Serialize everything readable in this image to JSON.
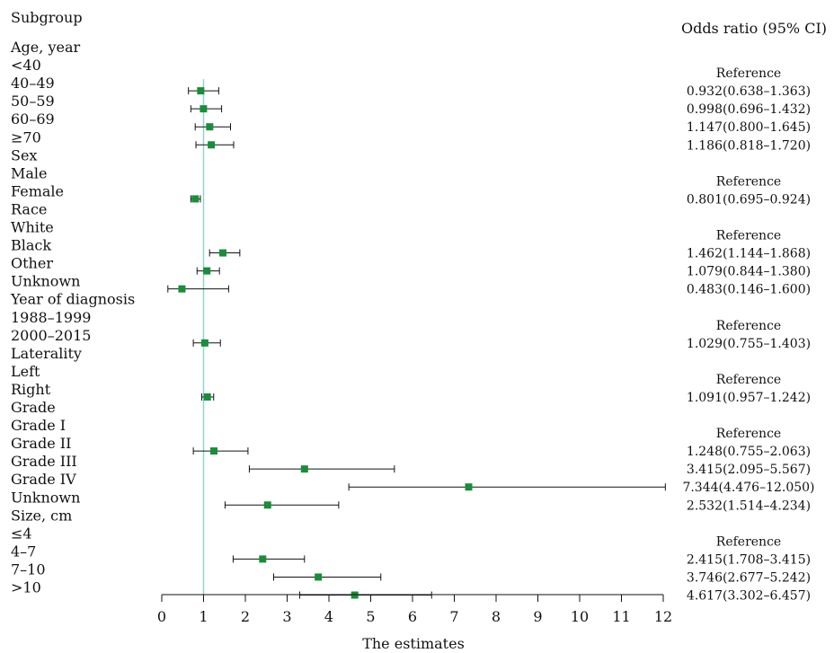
{
  "header": {
    "left": "Subgroup",
    "right": "Odds ratio (95% CI)"
  },
  "chart_data": {
    "type": "forest",
    "xlabel": "The estimates",
    "xlim": [
      0,
      12
    ],
    "xticks": [
      0,
      1,
      2,
      3,
      4,
      5,
      6,
      7,
      8,
      9,
      10,
      11,
      12
    ],
    "reference_line": 1,
    "rows": [
      {
        "label": "Age, year",
        "kind": "group"
      },
      {
        "label": "<40",
        "or_text": "Reference"
      },
      {
        "label": "40–49",
        "or": 0.932,
        "lo": 0.638,
        "hi": 1.363,
        "or_text": "0.932(0.638–1.363)"
      },
      {
        "label": "50–59",
        "or": 0.998,
        "lo": 0.696,
        "hi": 1.432,
        "or_text": "0.998(0.696–1.432)"
      },
      {
        "label": "60–69",
        "or": 1.147,
        "lo": 0.8,
        "hi": 1.645,
        "or_text": "1.147(0.800–1.645)"
      },
      {
        "label": "≥70",
        "or": 1.186,
        "lo": 0.818,
        "hi": 1.72,
        "or_text": "1.186(0.818–1.720)"
      },
      {
        "label": "Sex",
        "kind": "group"
      },
      {
        "label": "Male",
        "or_text": "Reference"
      },
      {
        "label": "Female",
        "or": 0.801,
        "lo": 0.695,
        "hi": 0.924,
        "or_text": "0.801(0.695–0.924)"
      },
      {
        "label": "Race",
        "kind": "group"
      },
      {
        "label": "White",
        "or_text": "Reference"
      },
      {
        "label": "Black",
        "or": 1.462,
        "lo": 1.144,
        "hi": 1.868,
        "or_text": "1.462(1.144–1.868)"
      },
      {
        "label": "Other",
        "or": 1.079,
        "lo": 0.844,
        "hi": 1.38,
        "or_text": "1.079(0.844–1.380)"
      },
      {
        "label": "Unknown",
        "or": 0.483,
        "lo": 0.146,
        "hi": 1.6,
        "or_text": "0.483(0.146–1.600)"
      },
      {
        "label": "Year of diagnosis",
        "kind": "group"
      },
      {
        "label": "1988–1999",
        "or_text": "Reference"
      },
      {
        "label": "2000–2015",
        "or": 1.029,
        "lo": 0.755,
        "hi": 1.403,
        "or_text": "1.029(0.755–1.403)"
      },
      {
        "label": "Laterality",
        "kind": "group"
      },
      {
        "label": "Left",
        "or_text": "Reference"
      },
      {
        "label": "Right",
        "or": 1.091,
        "lo": 0.957,
        "hi": 1.242,
        "or_text": "1.091(0.957–1.242)"
      },
      {
        "label": "Grade",
        "kind": "group"
      },
      {
        "label": "Grade I",
        "or_text": "Reference"
      },
      {
        "label": "Grade II",
        "or": 1.248,
        "lo": 0.755,
        "hi": 2.063,
        "or_text": "1.248(0.755–2.063)"
      },
      {
        "label": "Grade III",
        "or": 3.415,
        "lo": 2.095,
        "hi": 5.567,
        "or_text": "3.415(2.095–5.567)"
      },
      {
        "label": "Grade IV",
        "or": 7.344,
        "lo": 4.476,
        "hi": 12.05,
        "or_text": "7.344(4.476–12.050)"
      },
      {
        "label": "Unknown",
        "or": 2.532,
        "lo": 1.514,
        "hi": 4.234,
        "or_text": "2.532(1.514–4.234)"
      },
      {
        "label": "Size, cm",
        "kind": "group"
      },
      {
        "label": "≤4",
        "or_text": "Reference"
      },
      {
        "label": "4–7",
        "or": 2.415,
        "lo": 1.708,
        "hi": 3.415,
        "or_text": "2.415(1.708–3.415)"
      },
      {
        "label": "7–10",
        "or": 3.746,
        "lo": 2.677,
        "hi": 5.242,
        "or_text": "3.746(2.677–5.242)"
      },
      {
        "label": ">10",
        "or": 4.617,
        "lo": 3.302,
        "hi": 6.457,
        "or_text": "4.617(3.302–6.457)"
      }
    ],
    "colors": {
      "marker": "#1a8c3a",
      "reference_line": "#8fd3d0",
      "ci_line": "#111111"
    }
  }
}
